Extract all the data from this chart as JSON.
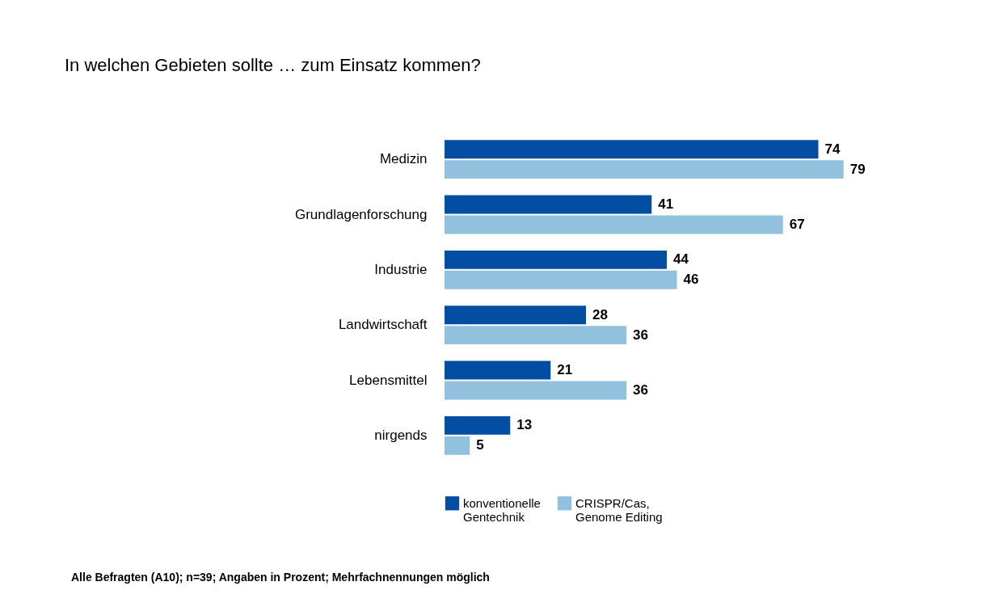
{
  "chart_data": {
    "type": "bar",
    "orientation": "horizontal",
    "title": "In welchen Gebieten sollte … zum Einsatz kommen?",
    "categories": [
      "Medizin",
      "Grundlagenforschung",
      "Industrie",
      "Landwirtschaft",
      "Lebensmittel",
      "nirgends"
    ],
    "series": [
      {
        "name": "konventionelle\nGentechnik",
        "color": "#034ea2",
        "values": [
          74,
          41,
          44,
          28,
          21,
          13
        ]
      },
      {
        "name": "CRISPR/Cas,\nGenome Editing",
        "color": "#92c1dd",
        "values": [
          79,
          67,
          46,
          36,
          36,
          5
        ]
      }
    ],
    "data_labels": true,
    "legend": "bottom",
    "annotations": [
      "Alle Befragten (A10); n=39; Angaben in Prozent; Mehrfachnennungen möglich"
    ]
  }
}
